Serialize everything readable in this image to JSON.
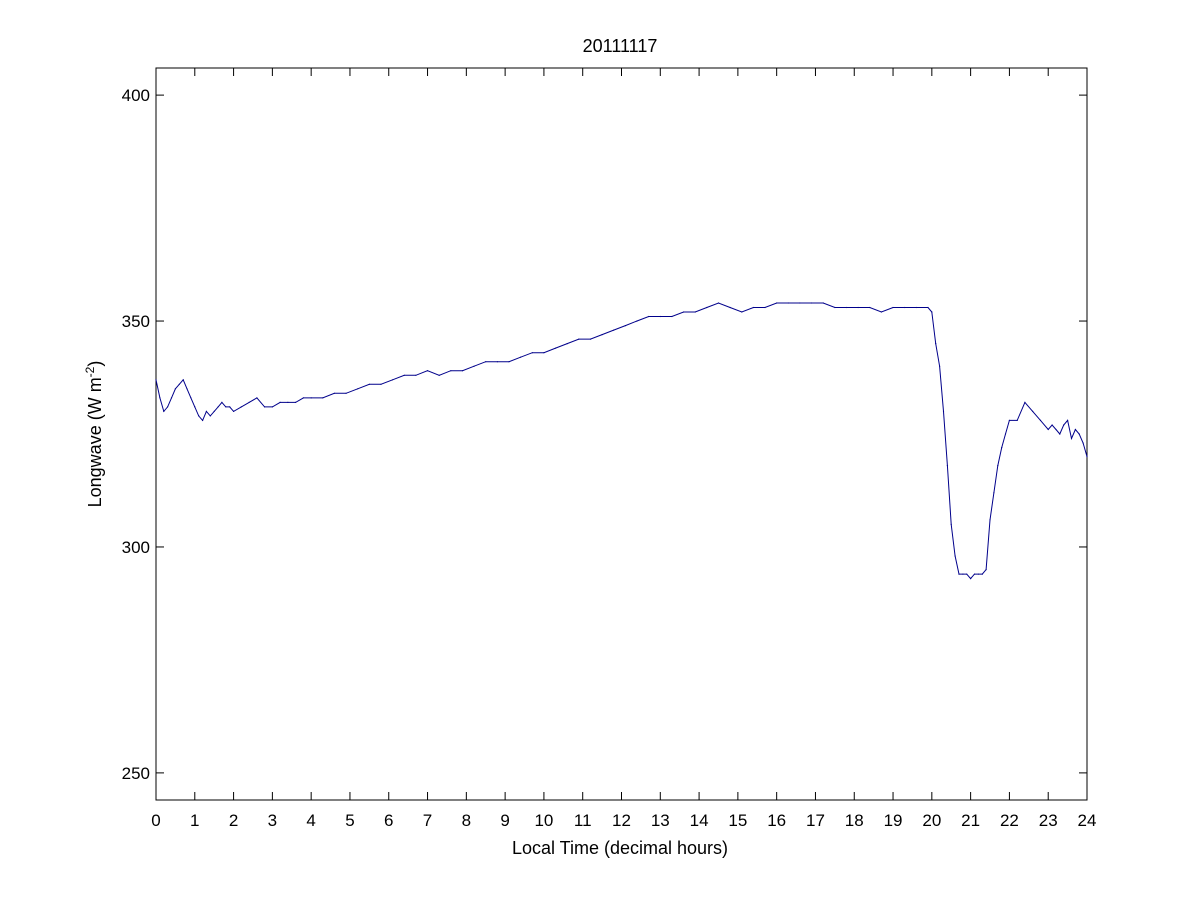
{
  "chart_data": {
    "type": "line",
    "title": "20111117",
    "xlabel": "Local Time (decimal hours)",
    "ylabel": "Longwave (W m",
    "ylabel_superscript": "-2",
    "ylabel_suffix": ")",
    "xlim": [
      0,
      24
    ],
    "ylim": [
      244,
      406
    ],
    "xticks": [
      0,
      1,
      2,
      3,
      4,
      5,
      6,
      7,
      8,
      9,
      10,
      11,
      12,
      13,
      14,
      15,
      16,
      17,
      18,
      19,
      20,
      21,
      22,
      23,
      24
    ],
    "yticks": [
      250,
      300,
      350,
      400
    ],
    "grid": false,
    "line_color": "#00008b",
    "series": [
      {
        "x": [
          0.0,
          0.1,
          0.2,
          0.3,
          0.4,
          0.5,
          0.6,
          0.7,
          0.8,
          0.9,
          1.0,
          1.1,
          1.2,
          1.3,
          1.4,
          1.5,
          1.6,
          1.7,
          1.8,
          1.9,
          2.0,
          2.2,
          2.4,
          2.6,
          2.8,
          3.0,
          3.2,
          3.4,
          3.6,
          3.8,
          4.0,
          4.3,
          4.6,
          4.9,
          5.2,
          5.5,
          5.8,
          6.1,
          6.4,
          6.7,
          7.0,
          7.3,
          7.6,
          7.9,
          8.2,
          8.5,
          8.8,
          9.1,
          9.4,
          9.7,
          10.0,
          10.3,
          10.6,
          10.9,
          11.2,
          11.5,
          11.8,
          12.1,
          12.4,
          12.7,
          13.0,
          13.3,
          13.6,
          13.9,
          14.2,
          14.5,
          14.8,
          15.1,
          15.4,
          15.7,
          16.0,
          16.3,
          16.6,
          16.9,
          17.2,
          17.5,
          17.8,
          18.1,
          18.4,
          18.7,
          19.0,
          19.3,
          19.6,
          19.9,
          20.0,
          20.1,
          20.2,
          20.3,
          20.4,
          20.5,
          20.6,
          20.7,
          20.8,
          20.9,
          21.0,
          21.1,
          21.2,
          21.3,
          21.4,
          21.5,
          21.6,
          21.7,
          21.8,
          21.9,
          22.0,
          22.2,
          22.4,
          22.6,
          22.8,
          23.0,
          23.1,
          23.2,
          23.3,
          23.4,
          23.5,
          23.6,
          23.7,
          23.8,
          23.9,
          24.0
        ],
        "y": [
          337,
          333,
          330,
          331,
          333,
          335,
          336,
          337,
          335,
          333,
          331,
          329,
          328,
          330,
          329,
          330,
          331,
          332,
          331,
          331,
          330,
          331,
          332,
          333,
          331,
          331,
          332,
          332,
          332,
          333,
          333,
          333,
          334,
          334,
          335,
          336,
          336,
          337,
          338,
          338,
          339,
          338,
          339,
          339,
          340,
          341,
          341,
          341,
          342,
          343,
          343,
          344,
          345,
          346,
          346,
          347,
          348,
          349,
          350,
          351,
          351,
          351,
          352,
          352,
          353,
          354,
          353,
          352,
          353,
          353,
          354,
          354,
          354,
          354,
          354,
          353,
          353,
          353,
          353,
          352,
          353,
          353,
          353,
          353,
          352,
          345,
          340,
          330,
          318,
          305,
          298,
          294,
          294,
          294,
          293,
          294,
          294,
          294,
          295,
          306,
          312,
          318,
          322,
          325,
          328,
          328,
          332,
          330,
          328,
          326,
          327,
          326,
          325,
          327,
          328,
          324,
          326,
          325,
          323,
          320
        ]
      }
    ]
  }
}
